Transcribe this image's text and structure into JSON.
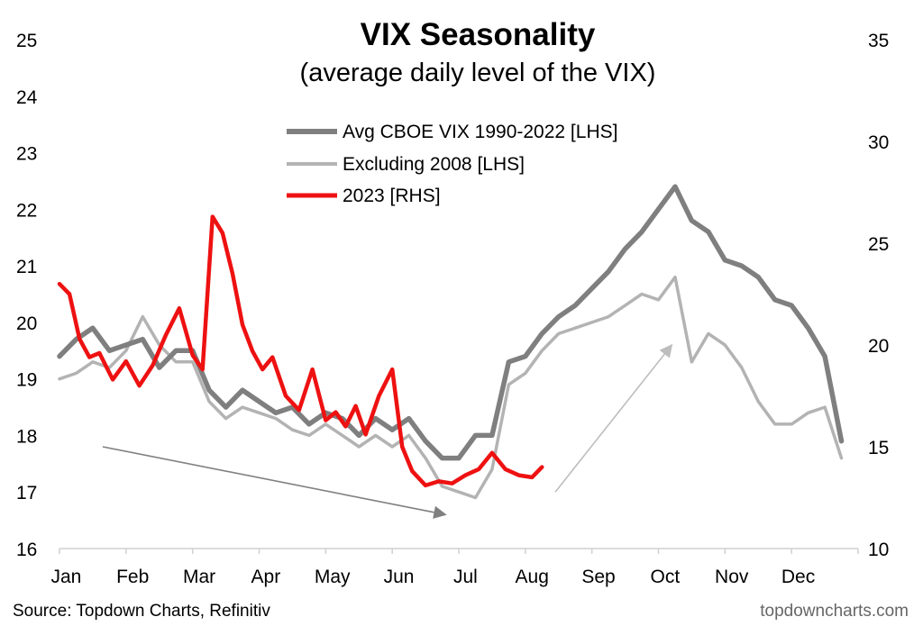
{
  "chart_data": {
    "type": "line",
    "title": "VIX Seasonality",
    "subtitle": "(average daily level of the VIX)",
    "xlabel": "",
    "ylabel_left": "",
    "ylabel_right": "",
    "x_categories": [
      "Jan",
      "Feb",
      "Mar",
      "Apr",
      "May",
      "Jun",
      "Jul",
      "Aug",
      "Sep",
      "Oct",
      "Nov",
      "Dec"
    ],
    "ylim_left": [
      16,
      25
    ],
    "ylim_right": [
      10,
      35
    ],
    "yticks_left": [
      "16",
      "17",
      "18",
      "19",
      "20",
      "21",
      "22",
      "23",
      "24",
      "25"
    ],
    "yticks_right": [
      "10",
      "15",
      "20",
      "25",
      "30",
      "35"
    ],
    "grid": false,
    "legend_placement": "top-center",
    "series": [
      {
        "name": "Avg CBOE VIX 1990-2022 [LHS]",
        "axis": "left",
        "color": "#7f7f7f",
        "x": [
          0,
          0.25,
          0.5,
          0.75,
          1.0,
          1.25,
          1.5,
          1.75,
          2.0,
          2.25,
          2.5,
          2.75,
          3.0,
          3.25,
          3.5,
          3.75,
          4.0,
          4.25,
          4.5,
          4.75,
          5.0,
          5.25,
          5.5,
          5.75,
          6.0,
          6.25,
          6.5,
          6.75,
          7.0,
          7.25,
          7.5,
          7.75,
          8.0,
          8.25,
          8.5,
          8.75,
          9.0,
          9.25,
          9.5,
          9.75,
          10.0,
          10.25,
          10.5,
          10.75,
          11.0,
          11.25,
          11.5,
          11.75
        ],
        "values": [
          19.4,
          19.7,
          19.9,
          19.5,
          19.6,
          19.7,
          19.2,
          19.5,
          19.5,
          18.8,
          18.5,
          18.8,
          18.6,
          18.4,
          18.5,
          18.2,
          18.4,
          18.3,
          18.0,
          18.3,
          18.1,
          18.3,
          17.9,
          17.6,
          17.6,
          18.0,
          18.0,
          19.3,
          19.4,
          19.8,
          20.1,
          20.3,
          20.6,
          20.9,
          21.3,
          21.6,
          22.0,
          22.4,
          21.8,
          21.6,
          21.1,
          21.0,
          20.8,
          20.4,
          20.3,
          19.9,
          19.4,
          17.9
        ]
      },
      {
        "name": "Excluding 2008 [LHS]",
        "axis": "left",
        "color": "#b3b3b3",
        "x": [
          0,
          0.25,
          0.5,
          0.75,
          1.0,
          1.25,
          1.5,
          1.75,
          2.0,
          2.25,
          2.5,
          2.75,
          3.0,
          3.25,
          3.5,
          3.75,
          4.0,
          4.25,
          4.5,
          4.75,
          5.0,
          5.25,
          5.5,
          5.75,
          6.0,
          6.25,
          6.5,
          6.75,
          7.0,
          7.25,
          7.5,
          7.75,
          8.0,
          8.25,
          8.5,
          8.75,
          9.0,
          9.25,
          9.5,
          9.75,
          10.0,
          10.25,
          10.5,
          10.75,
          11.0,
          11.25,
          11.5,
          11.75
        ],
        "values": [
          19.0,
          19.1,
          19.3,
          19.2,
          19.5,
          20.1,
          19.6,
          19.3,
          19.3,
          18.6,
          18.3,
          18.5,
          18.4,
          18.3,
          18.1,
          18.0,
          18.2,
          18.0,
          17.8,
          18.0,
          17.8,
          18.0,
          17.6,
          17.1,
          17.0,
          16.9,
          17.4,
          18.9,
          19.1,
          19.5,
          19.8,
          19.9,
          20.0,
          20.1,
          20.3,
          20.5,
          20.4,
          20.8,
          19.3,
          19.8,
          19.6,
          19.2,
          18.6,
          18.2,
          18.2,
          18.4,
          18.5,
          17.6
        ]
      },
      {
        "name": "2023 [RHS]",
        "axis": "right",
        "color": "#ee1111",
        "x": [
          0,
          0.15,
          0.3,
          0.45,
          0.6,
          0.8,
          1.0,
          1.2,
          1.4,
          1.6,
          1.8,
          2.0,
          2.15,
          2.3,
          2.45,
          2.6,
          2.75,
          2.9,
          3.05,
          3.2,
          3.4,
          3.6,
          3.8,
          4.0,
          4.15,
          4.3,
          4.45,
          4.6,
          4.8,
          5.0,
          5.15,
          5.3,
          5.5,
          5.7,
          5.9,
          6.1,
          6.3,
          6.5,
          6.7,
          6.9,
          7.1,
          7.25
        ],
        "values": [
          23.0,
          22.5,
          20.3,
          19.4,
          19.6,
          18.3,
          19.2,
          18.0,
          19.0,
          20.5,
          21.8,
          19.5,
          18.8,
          26.3,
          25.5,
          23.5,
          21.0,
          19.7,
          18.8,
          19.4,
          17.5,
          16.8,
          18.8,
          16.3,
          16.7,
          16.0,
          17.0,
          15.6,
          17.5,
          18.8,
          15.0,
          13.8,
          13.1,
          13.3,
          13.2,
          13.6,
          13.9,
          14.7,
          13.9,
          13.6,
          13.5,
          14.0
        ]
      }
    ],
    "annotations": [
      {
        "type": "arrow",
        "color": "#808080",
        "from": [
          0.65,
          17.8
        ],
        "to": [
          5.8,
          16.6
        ]
      },
      {
        "type": "arrow",
        "color": "#bdbdbd",
        "from": [
          7.45,
          17.0
        ],
        "to": [
          9.2,
          19.6
        ]
      }
    ],
    "source": "Source: Topdown Charts, Refinitiv",
    "watermark": "topdowncharts.com"
  }
}
